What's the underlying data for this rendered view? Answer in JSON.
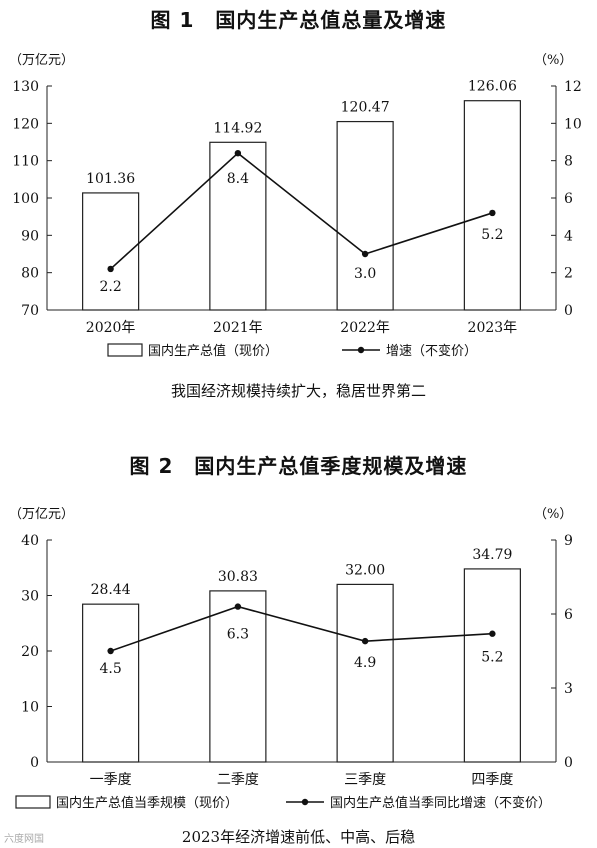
{
  "chart_data": [
    {
      "type": "bar",
      "title": "图 1　国内生产总值总量及增速",
      "caption": "我国经济规模持续扩大，稳居世界第二",
      "ylabel_left": "（万亿元）",
      "ylabel_right": "（%）",
      "categories": [
        "2020年",
        "2021年",
        "2022年",
        "2023年"
      ],
      "ylim_left": [
        70,
        130
      ],
      "yticks_left": [
        70,
        80,
        90,
        100,
        110,
        120,
        130
      ],
      "ylim_right": [
        0,
        12
      ],
      "yticks_right": [
        0,
        2,
        4,
        6,
        8,
        10,
        12
      ],
      "series": [
        {
          "name": "国内生产总值（现价）",
          "type": "bar",
          "axis": "left",
          "values": [
            101.36,
            114.92,
            120.47,
            126.06
          ],
          "labels": [
            "101.36",
            "114.92",
            "120.47",
            "126.06"
          ]
        },
        {
          "name": "增速（不变价）",
          "type": "line",
          "axis": "right",
          "values": [
            2.2,
            8.4,
            3.0,
            5.2
          ],
          "labels": [
            "2.2",
            "8.4",
            "3.0",
            "5.2"
          ]
        }
      ],
      "legend_position": "bottom",
      "grid": false
    },
    {
      "type": "bar",
      "title": "图 2　国内生产总值季度规模及增速",
      "caption": "2023年经济增速前低、中高、后稳",
      "ylabel_left": "（万亿元）",
      "ylabel_right": "（%）",
      "categories": [
        "一季度",
        "二季度",
        "三季度",
        "四季度"
      ],
      "ylim_left": [
        0,
        40
      ],
      "yticks_left": [
        0,
        10,
        20,
        30,
        40
      ],
      "ylim_right": [
        0,
        9
      ],
      "yticks_right": [
        0,
        3,
        6,
        9
      ],
      "series": [
        {
          "name": "国内生产总值当季规模（现价）",
          "type": "bar",
          "axis": "left",
          "values": [
            28.44,
            30.83,
            32.0,
            34.79
          ],
          "labels": [
            "28.44",
            "30.83",
            "32.00",
            "34.79"
          ]
        },
        {
          "name": "国内生产总值当季同比增速（不变价）",
          "type": "line",
          "axis": "right",
          "values": [
            4.5,
            6.3,
            4.9,
            5.2
          ],
          "labels": [
            "4.5",
            "6.3",
            "4.9",
            "5.2"
          ]
        }
      ],
      "legend_position": "bottom",
      "grid": false
    }
  ],
  "watermark": "六度网国"
}
